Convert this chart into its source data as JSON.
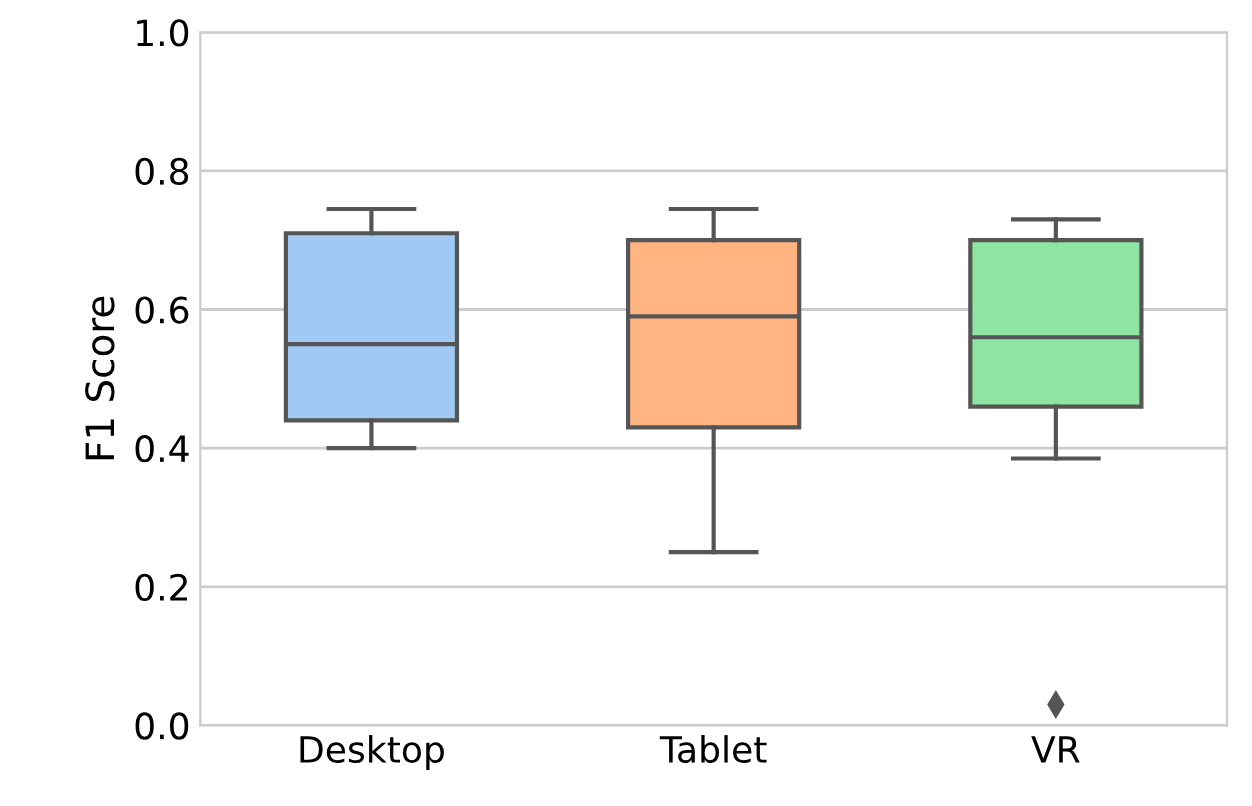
{
  "chart_data": {
    "type": "box",
    "ylabel": "F1 Score",
    "categories": [
      "Desktop",
      "Tablet",
      "VR"
    ],
    "colors": [
      "#a1c9f4",
      "#ffb482",
      "#8de5a1"
    ],
    "boxes": [
      {
        "low": 0.4,
        "q1": 0.44,
        "median": 0.55,
        "q3": 0.71,
        "high": 0.745
      },
      {
        "low": 0.25,
        "q1": 0.43,
        "median": 0.59,
        "q3": 0.7,
        "high": 0.745
      },
      {
        "low": 0.385,
        "q1": 0.46,
        "median": 0.56,
        "q3": 0.7,
        "high": 0.73,
        "outliers": [
          0.03
        ]
      }
    ],
    "ylim": [
      0,
      1
    ],
    "yticks": [
      {
        "value": 0,
        "label": "0.0"
      },
      0.2,
      0.4,
      0.6,
      0.8,
      {
        "value": 1,
        "label": "1.0"
      }
    ],
    "grid": "y",
    "legend": false
  }
}
